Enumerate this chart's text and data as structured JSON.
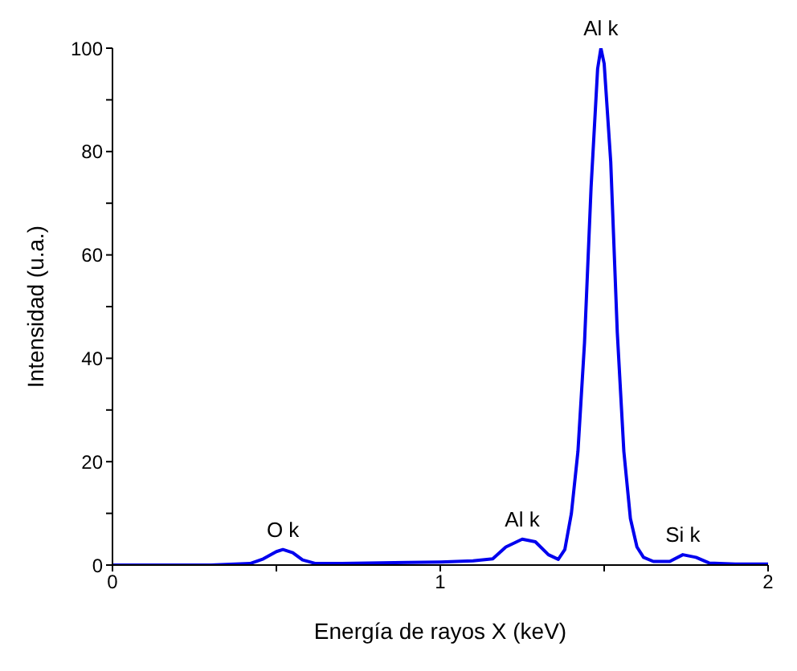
{
  "chart_data": {
    "type": "line",
    "xlabel": "Energía de rayos X (keV)",
    "ylabel": "Intensidad (u.a.)",
    "xlim": [
      0,
      2
    ],
    "ylim": [
      0,
      100
    ],
    "xticks": [
      0,
      {
        "value": 0.5,
        "label": null
      },
      1,
      {
        "value": 1.5,
        "label": null
      },
      2
    ],
    "yticks": [
      0,
      {
        "value": 10,
        "label": null
      },
      20,
      {
        "value": 30,
        "label": null
      },
      40,
      {
        "value": 50,
        "label": null
      },
      60,
      {
        "value": 70,
        "label": null
      },
      80,
      {
        "value": 90,
        "label": null
      },
      100
    ],
    "grid": false,
    "marker": "none",
    "line_style": "solid",
    "series": [
      {
        "color": "#0000ee",
        "x": [
          0,
          0.3,
          0.42,
          0.46,
          0.5,
          0.52,
          0.55,
          0.58,
          0.62,
          0.7,
          0.9,
          1.0,
          1.1,
          1.16,
          1.2,
          1.25,
          1.29,
          1.33,
          1.36,
          1.38,
          1.4,
          1.42,
          1.44,
          1.46,
          1.48,
          1.49,
          1.5,
          1.52,
          1.54,
          1.56,
          1.58,
          1.6,
          1.62,
          1.65,
          1.7,
          1.74,
          1.78,
          1.82,
          1.9,
          2.0
        ],
        "values": [
          0,
          0,
          0.3,
          1.2,
          2.6,
          3,
          2.4,
          1,
          0.3,
          0.3,
          0.5,
          0.6,
          0.8,
          1.2,
          3.5,
          5,
          4.5,
          2,
          1.1,
          3,
          10,
          22,
          43,
          73,
          96,
          100,
          97,
          78,
          45,
          22,
          9,
          3.5,
          1.5,
          0.7,
          0.7,
          2,
          1.5,
          0.4,
          0.2,
          0.2
        ]
      }
    ],
    "annotations": [
      {
        "text": "O k",
        "x": 0.52,
        "y": 3
      },
      {
        "text": "Al k",
        "x": 1.25,
        "y": 5
      },
      {
        "text": "Al k",
        "x": 1.49,
        "y": 100
      },
      {
        "text": "Si k",
        "x": 1.74,
        "y": 2
      }
    ]
  }
}
